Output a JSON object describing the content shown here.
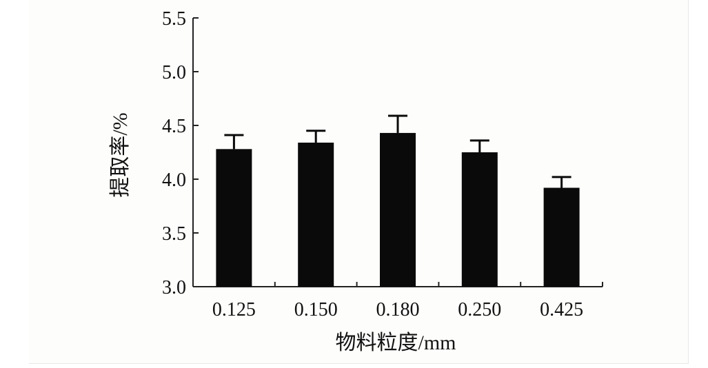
{
  "chart_data": {
    "type": "bar",
    "categories": [
      "0.125",
      "0.150",
      "0.180",
      "0.250",
      "0.425"
    ],
    "values": [
      4.28,
      4.34,
      4.43,
      4.25,
      3.92
    ],
    "error": [
      0.13,
      0.11,
      0.16,
      0.11,
      0.1
    ],
    "title": "",
    "xlabel": "物料粒度/mm",
    "ylabel": "提取率/%",
    "ylim": [
      3.0,
      5.5
    ],
    "yticks": [
      "3.0",
      "3.5",
      "4.0",
      "4.5",
      "5.0",
      "5.5"
    ],
    "grid": false,
    "bar_color": "#0a0a0a"
  }
}
